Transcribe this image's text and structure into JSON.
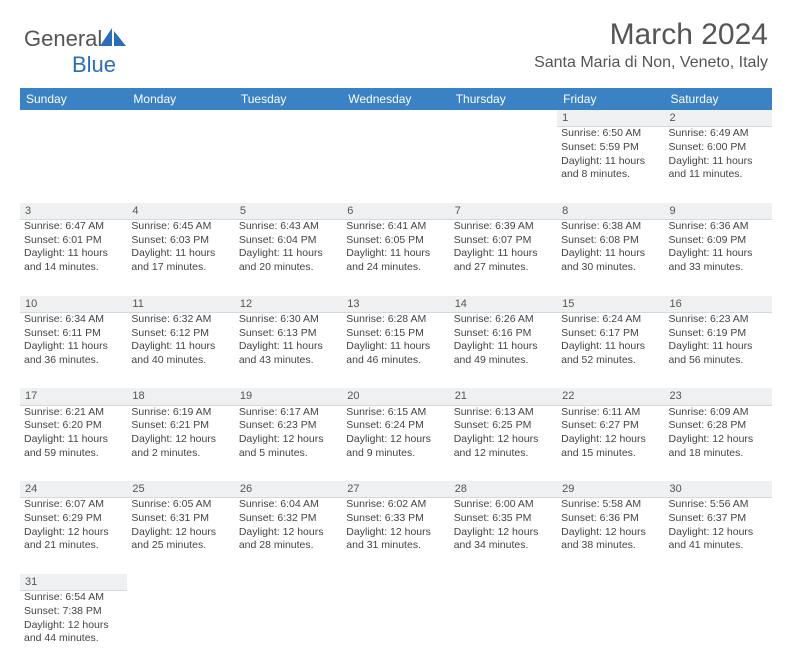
{
  "logo": {
    "general": "General",
    "blue": "Blue"
  },
  "title": "March 2024",
  "location": "Santa Maria di Non, Veneto, Italy",
  "colors": {
    "header_bg": "#3a82c4",
    "header_text": "#ffffff",
    "daynum_bg": "#eef0f2",
    "text": "#444444",
    "logo_blue": "#2a6fb5"
  },
  "days_of_week": [
    "Sunday",
    "Monday",
    "Tuesday",
    "Wednesday",
    "Thursday",
    "Friday",
    "Saturday"
  ],
  "weeks": [
    [
      null,
      null,
      null,
      null,
      null,
      {
        "n": "1",
        "sr": "Sunrise: 6:50 AM",
        "ss": "Sunset: 5:59 PM",
        "d1": "Daylight: 11 hours",
        "d2": "and 8 minutes."
      },
      {
        "n": "2",
        "sr": "Sunrise: 6:49 AM",
        "ss": "Sunset: 6:00 PM",
        "d1": "Daylight: 11 hours",
        "d2": "and 11 minutes."
      }
    ],
    [
      {
        "n": "3",
        "sr": "Sunrise: 6:47 AM",
        "ss": "Sunset: 6:01 PM",
        "d1": "Daylight: 11 hours",
        "d2": "and 14 minutes."
      },
      {
        "n": "4",
        "sr": "Sunrise: 6:45 AM",
        "ss": "Sunset: 6:03 PM",
        "d1": "Daylight: 11 hours",
        "d2": "and 17 minutes."
      },
      {
        "n": "5",
        "sr": "Sunrise: 6:43 AM",
        "ss": "Sunset: 6:04 PM",
        "d1": "Daylight: 11 hours",
        "d2": "and 20 minutes."
      },
      {
        "n": "6",
        "sr": "Sunrise: 6:41 AM",
        "ss": "Sunset: 6:05 PM",
        "d1": "Daylight: 11 hours",
        "d2": "and 24 minutes."
      },
      {
        "n": "7",
        "sr": "Sunrise: 6:39 AM",
        "ss": "Sunset: 6:07 PM",
        "d1": "Daylight: 11 hours",
        "d2": "and 27 minutes."
      },
      {
        "n": "8",
        "sr": "Sunrise: 6:38 AM",
        "ss": "Sunset: 6:08 PM",
        "d1": "Daylight: 11 hours",
        "d2": "and 30 minutes."
      },
      {
        "n": "9",
        "sr": "Sunrise: 6:36 AM",
        "ss": "Sunset: 6:09 PM",
        "d1": "Daylight: 11 hours",
        "d2": "and 33 minutes."
      }
    ],
    [
      {
        "n": "10",
        "sr": "Sunrise: 6:34 AM",
        "ss": "Sunset: 6:11 PM",
        "d1": "Daylight: 11 hours",
        "d2": "and 36 minutes."
      },
      {
        "n": "11",
        "sr": "Sunrise: 6:32 AM",
        "ss": "Sunset: 6:12 PM",
        "d1": "Daylight: 11 hours",
        "d2": "and 40 minutes."
      },
      {
        "n": "12",
        "sr": "Sunrise: 6:30 AM",
        "ss": "Sunset: 6:13 PM",
        "d1": "Daylight: 11 hours",
        "d2": "and 43 minutes."
      },
      {
        "n": "13",
        "sr": "Sunrise: 6:28 AM",
        "ss": "Sunset: 6:15 PM",
        "d1": "Daylight: 11 hours",
        "d2": "and 46 minutes."
      },
      {
        "n": "14",
        "sr": "Sunrise: 6:26 AM",
        "ss": "Sunset: 6:16 PM",
        "d1": "Daylight: 11 hours",
        "d2": "and 49 minutes."
      },
      {
        "n": "15",
        "sr": "Sunrise: 6:24 AM",
        "ss": "Sunset: 6:17 PM",
        "d1": "Daylight: 11 hours",
        "d2": "and 52 minutes."
      },
      {
        "n": "16",
        "sr": "Sunrise: 6:23 AM",
        "ss": "Sunset: 6:19 PM",
        "d1": "Daylight: 11 hours",
        "d2": "and 56 minutes."
      }
    ],
    [
      {
        "n": "17",
        "sr": "Sunrise: 6:21 AM",
        "ss": "Sunset: 6:20 PM",
        "d1": "Daylight: 11 hours",
        "d2": "and 59 minutes."
      },
      {
        "n": "18",
        "sr": "Sunrise: 6:19 AM",
        "ss": "Sunset: 6:21 PM",
        "d1": "Daylight: 12 hours",
        "d2": "and 2 minutes."
      },
      {
        "n": "19",
        "sr": "Sunrise: 6:17 AM",
        "ss": "Sunset: 6:23 PM",
        "d1": "Daylight: 12 hours",
        "d2": "and 5 minutes."
      },
      {
        "n": "20",
        "sr": "Sunrise: 6:15 AM",
        "ss": "Sunset: 6:24 PM",
        "d1": "Daylight: 12 hours",
        "d2": "and 9 minutes."
      },
      {
        "n": "21",
        "sr": "Sunrise: 6:13 AM",
        "ss": "Sunset: 6:25 PM",
        "d1": "Daylight: 12 hours",
        "d2": "and 12 minutes."
      },
      {
        "n": "22",
        "sr": "Sunrise: 6:11 AM",
        "ss": "Sunset: 6:27 PM",
        "d1": "Daylight: 12 hours",
        "d2": "and 15 minutes."
      },
      {
        "n": "23",
        "sr": "Sunrise: 6:09 AM",
        "ss": "Sunset: 6:28 PM",
        "d1": "Daylight: 12 hours",
        "d2": "and 18 minutes."
      }
    ],
    [
      {
        "n": "24",
        "sr": "Sunrise: 6:07 AM",
        "ss": "Sunset: 6:29 PM",
        "d1": "Daylight: 12 hours",
        "d2": "and 21 minutes."
      },
      {
        "n": "25",
        "sr": "Sunrise: 6:05 AM",
        "ss": "Sunset: 6:31 PM",
        "d1": "Daylight: 12 hours",
        "d2": "and 25 minutes."
      },
      {
        "n": "26",
        "sr": "Sunrise: 6:04 AM",
        "ss": "Sunset: 6:32 PM",
        "d1": "Daylight: 12 hours",
        "d2": "and 28 minutes."
      },
      {
        "n": "27",
        "sr": "Sunrise: 6:02 AM",
        "ss": "Sunset: 6:33 PM",
        "d1": "Daylight: 12 hours",
        "d2": "and 31 minutes."
      },
      {
        "n": "28",
        "sr": "Sunrise: 6:00 AM",
        "ss": "Sunset: 6:35 PM",
        "d1": "Daylight: 12 hours",
        "d2": "and 34 minutes."
      },
      {
        "n": "29",
        "sr": "Sunrise: 5:58 AM",
        "ss": "Sunset: 6:36 PM",
        "d1": "Daylight: 12 hours",
        "d2": "and 38 minutes."
      },
      {
        "n": "30",
        "sr": "Sunrise: 5:56 AM",
        "ss": "Sunset: 6:37 PM",
        "d1": "Daylight: 12 hours",
        "d2": "and 41 minutes."
      }
    ],
    [
      {
        "n": "31",
        "sr": "Sunrise: 6:54 AM",
        "ss": "Sunset: 7:38 PM",
        "d1": "Daylight: 12 hours",
        "d2": "and 44 minutes."
      },
      null,
      null,
      null,
      null,
      null,
      null
    ]
  ]
}
